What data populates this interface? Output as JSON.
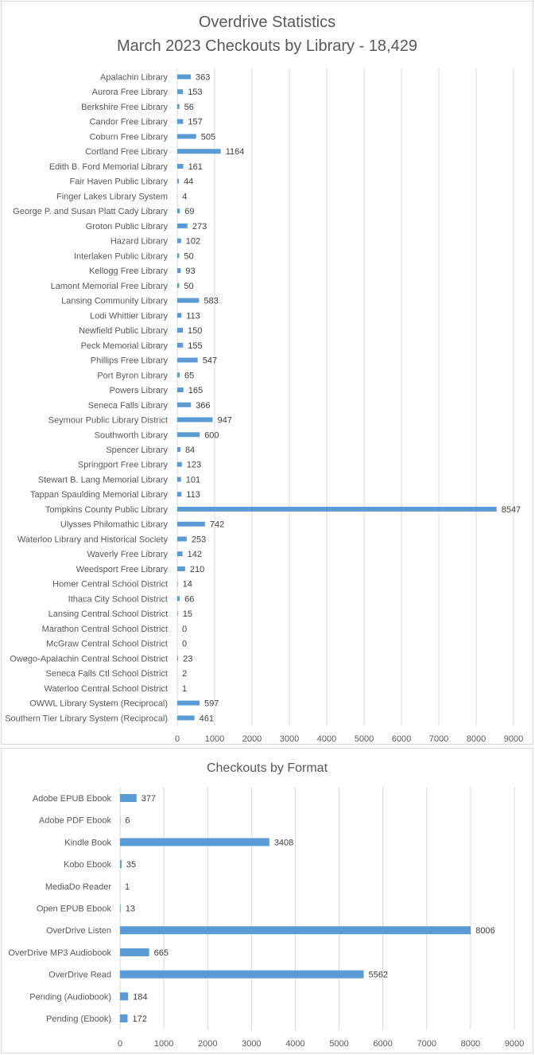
{
  "chart_data": [
    {
      "type": "bar",
      "orientation": "horizontal",
      "title": [
        "Overdrive Statistics",
        "March 2023 Checkouts by Library - 18,429"
      ],
      "categories": [
        "Apalachin Library",
        "Aurora Free Library",
        "Berkshire Free Library",
        "Candor Free Library",
        "Coburn Free Library",
        "Cortland Free Library",
        "Edith B. Ford Memorial Library",
        "Fair Haven Public Library",
        "Finger Lakes Library System",
        "George P. and Susan Platt Cady Library",
        "Groton Public Library",
        "Hazard Library",
        "Interlaken Public Library",
        "Kellogg Free Library",
        "Lamont Memorial Free Library",
        "Lansing Community Library",
        "Lodi Whittier Library",
        "Newfield Public Library",
        "Peck Memorial Library",
        "Phillips Free Library",
        "Port Byron Library",
        "Powers Library",
        "Seneca Falls Library",
        "Seymour Public Library District",
        "Southworth Library",
        "Spencer Library",
        "Springport Free Library",
        "Stewart B. Lang Memorial Library",
        "Tappan Spaulding Memorial Library",
        "Tompkins County Public Library",
        "Ulysses Philomathic Library",
        "Waterloo Library and Historical Society",
        "Waverly Free Library",
        "Weedsport Free Library",
        "Homer Central School District",
        "Ithaca City School District",
        "Lansing Central School District",
        "Marathon Central School District",
        "McGraw Central School District",
        "Owego-Apalachin Central School District",
        "Seneca Falls Ctl School District",
        "Waterloo Central School District",
        "OWWL Library System (Reciprocal)",
        "Southern Tier Library System (Reciprocal)"
      ],
      "values": [
        363,
        153,
        56,
        157,
        505,
        1164,
        161,
        44,
        4,
        69,
        273,
        102,
        50,
        93,
        50,
        583,
        113,
        150,
        155,
        547,
        65,
        165,
        366,
        947,
        600,
        84,
        123,
        101,
        113,
        8547,
        742,
        253,
        142,
        210,
        14,
        66,
        15,
        0,
        0,
        23,
        2,
        1,
        597,
        461
      ],
      "xlim": [
        0,
        9000
      ],
      "xticks": [
        0,
        1000,
        2000,
        3000,
        4000,
        5000,
        6000,
        7000,
        8000,
        9000
      ],
      "grid": true,
      "data_labels": true,
      "color": "#5b9bd5"
    },
    {
      "type": "bar",
      "orientation": "horizontal",
      "title": [
        "Checkouts by Format"
      ],
      "categories": [
        "Adobe EPUB Ebook",
        "Adobe PDF Ebook",
        "Kindle Book",
        "Kobo Ebook",
        "MediaDo Reader",
        "Open EPUB Ebook",
        "OverDrive Listen",
        "OverDrive MP3 Audiobook",
        "OverDrive Read",
        "Pending (Audiobook)",
        "Pending (Ebook)"
      ],
      "values": [
        377,
        6,
        3408,
        35,
        1,
        13,
        8006,
        665,
        5562,
        184,
        172
      ],
      "xlim": [
        0,
        9000
      ],
      "xticks": [
        0,
        1000,
        2000,
        3000,
        4000,
        5000,
        6000,
        7000,
        8000,
        9000
      ],
      "grid": true,
      "data_labels": true,
      "color": "#5b9bd5"
    }
  ]
}
